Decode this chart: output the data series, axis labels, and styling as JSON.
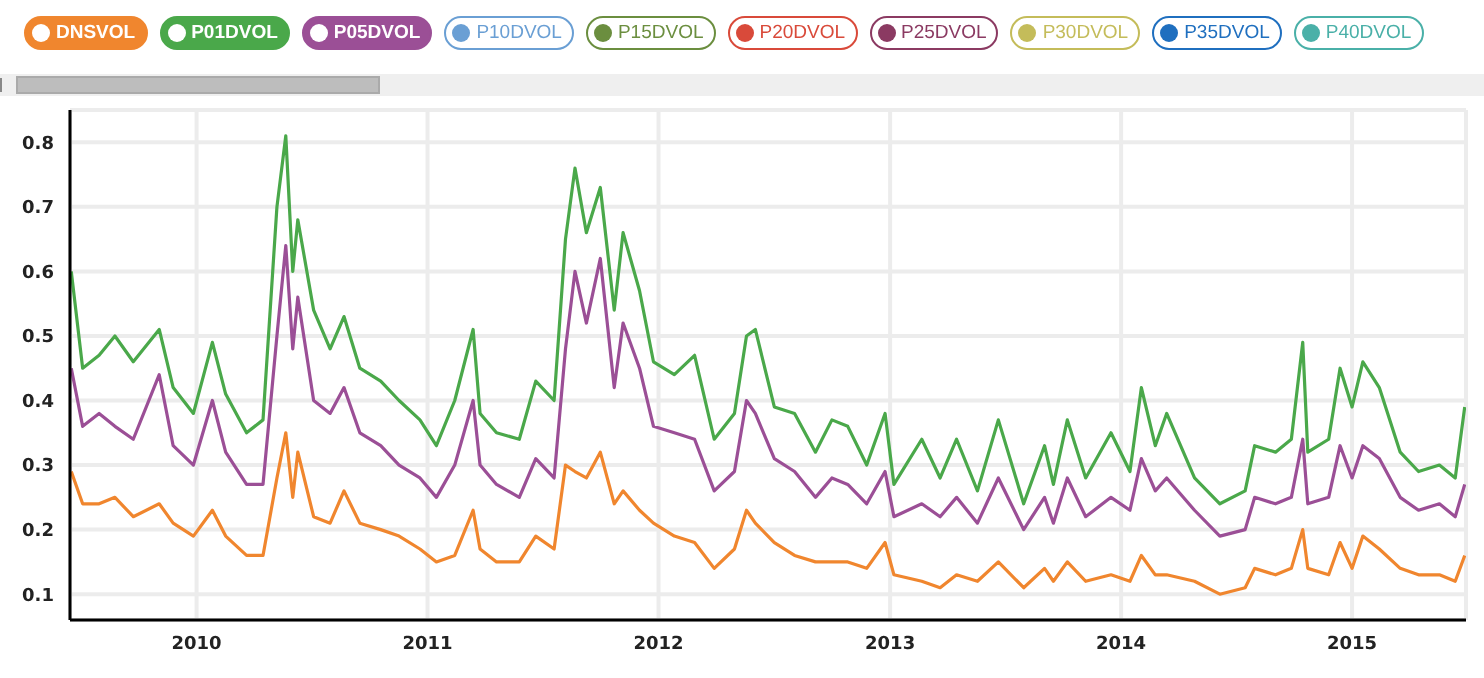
{
  "chart_data": {
    "type": "line",
    "legend": "top",
    "grid": true,
    "xlim": [
      "2009-06-15",
      "2015-06-30"
    ],
    "xticks": [
      "2010",
      "2011",
      "2012",
      "2013",
      "2014",
      "2015"
    ],
    "ylim": [
      0.06,
      0.85
    ],
    "yticks": [
      0.1,
      0.2,
      0.3,
      0.4,
      0.5,
      0.6,
      0.7,
      0.8
    ],
    "x": [
      "2009-06-17",
      "2009-07-05",
      "2009-07-31",
      "2009-08-25",
      "2009-09-23",
      "2009-11-03",
      "2009-11-25",
      "2009-12-27",
      "2010-01-26",
      "2010-02-16",
      "2010-03-21",
      "2010-04-16",
      "2010-05-08",
      "2010-05-22",
      "2010-06-02",
      "2010-06-10",
      "2010-07-05",
      "2010-07-31",
      "2010-08-22",
      "2010-09-16",
      "2010-10-19",
      "2010-11-17",
      "2010-12-20",
      "2011-01-15",
      "2011-02-13",
      "2011-03-14",
      "2011-03-25",
      "2011-04-20",
      "2011-05-26",
      "2011-06-21",
      "2011-07-20",
      "2011-08-07",
      "2011-08-22",
      "2011-09-09",
      "2011-10-01",
      "2011-10-23",
      "2011-11-06",
      "2011-12-02",
      "2011-12-24",
      "2012-01-26",
      "2012-02-27",
      "2012-03-29",
      "2012-04-30",
      "2012-05-19",
      "2012-06-02",
      "2012-07-02",
      "2012-08-03",
      "2012-09-05",
      "2012-10-01",
      "2012-10-26",
      "2012-11-25",
      "2012-12-24",
      "2013-01-07",
      "2013-02-20",
      "2013-03-21",
      "2013-04-16",
      "2013-05-19",
      "2013-06-21",
      "2013-07-31",
      "2013-09-02",
      "2013-09-16",
      "2013-10-08",
      "2013-11-06",
      "2013-12-16",
      "2014-01-15",
      "2014-02-02",
      "2014-02-24",
      "2014-03-14",
      "2014-04-27",
      "2014-06-06",
      "2014-07-16",
      "2014-07-31",
      "2014-09-02",
      "2014-09-27",
      "2014-10-15",
      "2014-10-23",
      "2014-11-25",
      "2014-12-13",
      "2015-01-01",
      "2015-01-18",
      "2015-02-13",
      "2015-03-18",
      "2015-04-16",
      "2015-05-19",
      "2015-06-13",
      "2015-06-28"
    ],
    "series": [
      {
        "name": "DNSVOL",
        "color": "#f0862e",
        "values": [
          0.29,
          0.24,
          0.24,
          0.25,
          0.22,
          0.24,
          0.21,
          0.19,
          0.23,
          0.19,
          0.16,
          0.16,
          0.28,
          0.35,
          0.25,
          0.32,
          0.22,
          0.21,
          0.26,
          0.21,
          0.2,
          0.19,
          0.17,
          0.15,
          0.16,
          0.23,
          0.17,
          0.15,
          0.15,
          0.19,
          0.17,
          0.3,
          0.29,
          0.28,
          0.32,
          0.24,
          0.26,
          0.23,
          0.21,
          0.19,
          0.18,
          0.14,
          0.17,
          0.23,
          0.21,
          0.18,
          0.16,
          0.15,
          0.15,
          0.15,
          0.14,
          0.18,
          0.13,
          0.12,
          0.11,
          0.13,
          0.12,
          0.15,
          0.11,
          0.14,
          0.12,
          0.15,
          0.12,
          0.13,
          0.12,
          0.16,
          0.13,
          0.13,
          0.12,
          0.1,
          0.11,
          0.14,
          0.13,
          0.14,
          0.2,
          0.14,
          0.13,
          0.18,
          0.14,
          0.19,
          0.17,
          0.14,
          0.13,
          0.13,
          0.12,
          0.16
        ]
      },
      {
        "name": "P01DVOL",
        "color": "#4aa84a",
        "values": [
          0.6,
          0.45,
          0.47,
          0.5,
          0.46,
          0.51,
          0.42,
          0.38,
          0.49,
          0.41,
          0.35,
          0.37,
          0.7,
          0.81,
          0.6,
          0.68,
          0.54,
          0.48,
          0.53,
          0.45,
          0.43,
          0.4,
          0.37,
          0.33,
          0.4,
          0.51,
          0.38,
          0.35,
          0.34,
          0.43,
          0.4,
          0.65,
          0.76,
          0.66,
          0.73,
          0.54,
          0.66,
          0.57,
          0.46,
          0.44,
          0.47,
          0.34,
          0.38,
          0.5,
          0.51,
          0.39,
          0.38,
          0.32,
          0.37,
          0.36,
          0.3,
          0.38,
          0.27,
          0.34,
          0.28,
          0.34,
          0.26,
          0.37,
          0.24,
          0.33,
          0.27,
          0.37,
          0.28,
          0.35,
          0.29,
          0.42,
          0.33,
          0.38,
          0.28,
          0.24,
          0.26,
          0.33,
          0.32,
          0.34,
          0.49,
          0.32,
          0.34,
          0.45,
          0.39,
          0.46,
          0.42,
          0.32,
          0.29,
          0.3,
          0.28,
          0.39
        ]
      },
      {
        "name": "P05DVOL",
        "color": "#9b4f96",
        "values": [
          0.45,
          0.36,
          0.38,
          0.36,
          0.34,
          0.44,
          0.33,
          0.3,
          0.4,
          0.32,
          0.27,
          0.27,
          0.5,
          0.64,
          0.48,
          0.56,
          0.4,
          0.38,
          0.42,
          0.35,
          0.33,
          0.3,
          0.28,
          0.25,
          0.3,
          0.4,
          0.3,
          0.27,
          0.25,
          0.31,
          0.28,
          0.48,
          0.6,
          0.52,
          0.62,
          0.42,
          0.52,
          0.45,
          0.36,
          0.35,
          0.34,
          0.26,
          0.29,
          0.4,
          0.38,
          0.31,
          0.29,
          0.25,
          0.28,
          0.27,
          0.24,
          0.29,
          0.22,
          0.24,
          0.22,
          0.25,
          0.21,
          0.28,
          0.2,
          0.25,
          0.21,
          0.28,
          0.22,
          0.25,
          0.23,
          0.31,
          0.26,
          0.28,
          0.23,
          0.19,
          0.2,
          0.25,
          0.24,
          0.25,
          0.34,
          0.24,
          0.25,
          0.33,
          0.28,
          0.33,
          0.31,
          0.25,
          0.23,
          0.24,
          0.22,
          0.27
        ]
      },
      {
        "name": "P10DVOL",
        "color": "#6a9fd4",
        "values": [
          null,
          null,
          null,
          null,
          null,
          null,
          null,
          null,
          null,
          null,
          null,
          null,
          null,
          null,
          null,
          null,
          null,
          null,
          null,
          null,
          null,
          null,
          null,
          null,
          null,
          null,
          null,
          null,
          null,
          null,
          null,
          null,
          null,
          null,
          null,
          null,
          null,
          null,
          null,
          null,
          null,
          null,
          null,
          null,
          null,
          null,
          null,
          null,
          null,
          null,
          null,
          null,
          null,
          null,
          null,
          null,
          null,
          null,
          null,
          null,
          null,
          null,
          null,
          null,
          null,
          null,
          null,
          null,
          null,
          null,
          null,
          null,
          null,
          null,
          null,
          null,
          null,
          null,
          null,
          null,
          null,
          null,
          null,
          null,
          null,
          null
        ]
      },
      {
        "name": "P15DVOL",
        "color": "#6b8e3f",
        "values": [
          null,
          null,
          null,
          null,
          null,
          null,
          null,
          null,
          null,
          null,
          null,
          null,
          null,
          null,
          null,
          null,
          null,
          null,
          null,
          null,
          null,
          null,
          null,
          null,
          null,
          null,
          null,
          null,
          null,
          null,
          null,
          null,
          null,
          null,
          null,
          null,
          null,
          null,
          null,
          null,
          null,
          null,
          null,
          null,
          null,
          null,
          null,
          null,
          null,
          null,
          null,
          null,
          null,
          null,
          null,
          null,
          null,
          null,
          null,
          null,
          null,
          null,
          null,
          null,
          null,
          null,
          null,
          null,
          null,
          null,
          null,
          null,
          null,
          null,
          null,
          null,
          null,
          null,
          null,
          null,
          null,
          null,
          null,
          null,
          null,
          null
        ]
      },
      {
        "name": "P20DVOL",
        "color": "#d94a3a",
        "values": [
          null,
          null,
          null,
          null,
          null,
          null,
          null,
          null,
          null,
          null,
          null,
          null,
          null,
          null,
          null,
          null,
          null,
          null,
          null,
          null,
          null,
          null,
          null,
          null,
          null,
          null,
          null,
          null,
          null,
          null,
          null,
          null,
          null,
          null,
          null,
          null,
          null,
          null,
          null,
          null,
          null,
          null,
          null,
          null,
          null,
          null,
          null,
          null,
          null,
          null,
          null,
          null,
          null,
          null,
          null,
          null,
          null,
          null,
          null,
          null,
          null,
          null,
          null,
          null,
          null,
          null,
          null,
          null,
          null,
          null,
          null,
          null,
          null,
          null,
          null,
          null,
          null,
          null,
          null,
          null,
          null,
          null,
          null,
          null,
          null,
          null
        ]
      },
      {
        "name": "P25DVOL",
        "color": "#8b3a62",
        "values": [
          null,
          null,
          null,
          null,
          null,
          null,
          null,
          null,
          null,
          null,
          null,
          null,
          null,
          null,
          null,
          null,
          null,
          null,
          null,
          null,
          null,
          null,
          null,
          null,
          null,
          null,
          null,
          null,
          null,
          null,
          null,
          null,
          null,
          null,
          null,
          null,
          null,
          null,
          null,
          null,
          null,
          null,
          null,
          null,
          null,
          null,
          null,
          null,
          null,
          null,
          null,
          null,
          null,
          null,
          null,
          null,
          null,
          null,
          null,
          null,
          null,
          null,
          null,
          null,
          null,
          null,
          null,
          null,
          null,
          null,
          null,
          null,
          null,
          null,
          null,
          null,
          null,
          null,
          null,
          null,
          null,
          null,
          null,
          null,
          null,
          null
        ]
      },
      {
        "name": "P30DVOL",
        "color": "#c4bc5a",
        "values": [
          null,
          null,
          null,
          null,
          null,
          null,
          null,
          null,
          null,
          null,
          null,
          null,
          null,
          null,
          null,
          null,
          null,
          null,
          null,
          null,
          null,
          null,
          null,
          null,
          null,
          null,
          null,
          null,
          null,
          null,
          null,
          null,
          null,
          null,
          null,
          null,
          null,
          null,
          null,
          null,
          null,
          null,
          null,
          null,
          null,
          null,
          null,
          null,
          null,
          null,
          null,
          null,
          null,
          null,
          null,
          null,
          null,
          null,
          null,
          null,
          null,
          null,
          null,
          null,
          null,
          null,
          null,
          null,
          null,
          null,
          null,
          null,
          null,
          null,
          null,
          null,
          null,
          null,
          null,
          null,
          null,
          null,
          null,
          null,
          null,
          null
        ]
      },
      {
        "name": "P35DVOL",
        "color": "#1f6fbf",
        "values": [
          null,
          null,
          null,
          null,
          null,
          null,
          null,
          null,
          null,
          null,
          null,
          null,
          null,
          null,
          null,
          null,
          null,
          null,
          null,
          null,
          null,
          null,
          null,
          null,
          null,
          null,
          null,
          null,
          null,
          null,
          null,
          null,
          null,
          null,
          null,
          null,
          null,
          null,
          null,
          null,
          null,
          null,
          null,
          null,
          null,
          null,
          null,
          null,
          null,
          null,
          null,
          null,
          null,
          null,
          null,
          null,
          null,
          null,
          null,
          null,
          null,
          null,
          null,
          null,
          null,
          null,
          null,
          null,
          null,
          null,
          null,
          null,
          null,
          null,
          null,
          null,
          null,
          null,
          null,
          null,
          null,
          null,
          null,
          null,
          null,
          null
        ]
      },
      {
        "name": "P40DVOL",
        "color": "#4ab0a8",
        "values": [
          null,
          null,
          null,
          null,
          null,
          null,
          null,
          null,
          null,
          null,
          null,
          null,
          null,
          null,
          null,
          null,
          null,
          null,
          null,
          null,
          null,
          null,
          null,
          null,
          null,
          null,
          null,
          null,
          null,
          null,
          null,
          null,
          null,
          null,
          null,
          null,
          null,
          null,
          null,
          null,
          null,
          null,
          null,
          null,
          null,
          null,
          null,
          null,
          null,
          null,
          null,
          null,
          null,
          null,
          null,
          null,
          null,
          null,
          null,
          null,
          null,
          null,
          null,
          null,
          null,
          null,
          null,
          null,
          null,
          null,
          null,
          null,
          null,
          null,
          null,
          null,
          null,
          null,
          null,
          null,
          null,
          null,
          null,
          null,
          null,
          null
        ]
      }
    ]
  }
}
